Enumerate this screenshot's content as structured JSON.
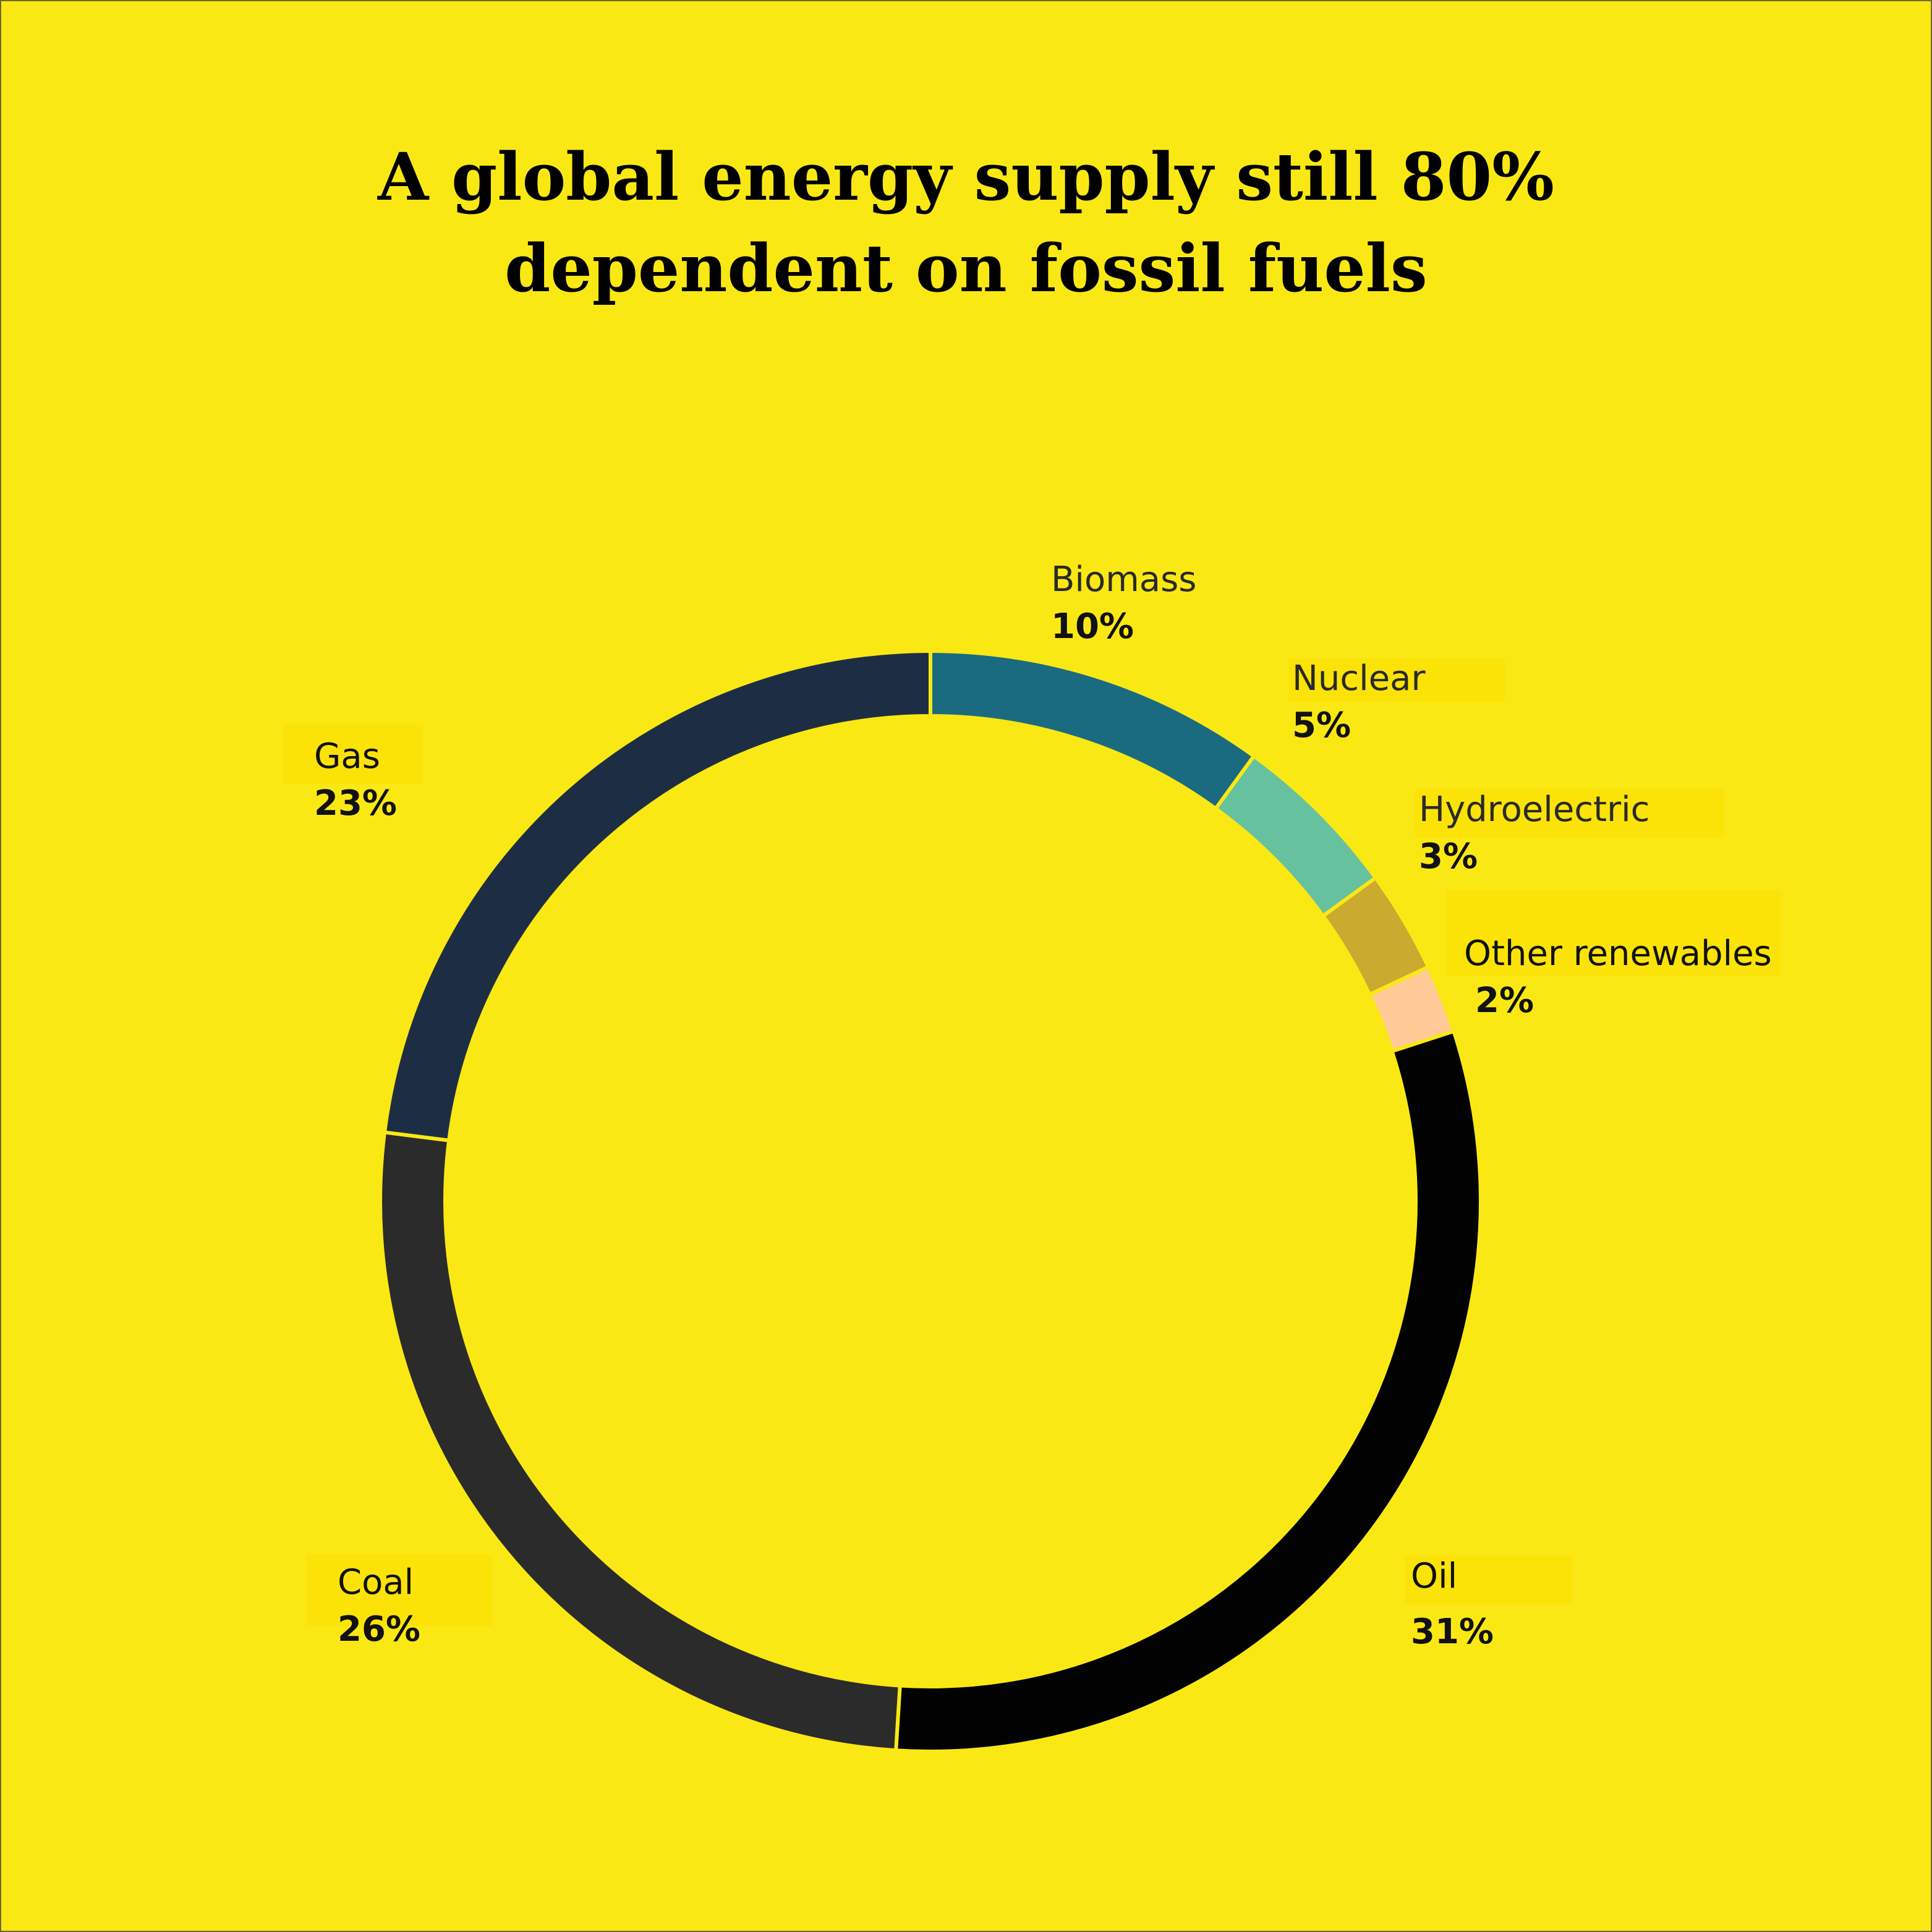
{
  "title": "A global energy supply still 80%\ndependent on fossil fuels",
  "colors": {
    "background": "#fae814",
    "separator": "#fae814"
  },
  "chart_data": {
    "type": "pie",
    "style": "donut",
    "title": "A global energy supply still 80% dependent on fossil fuels",
    "start": "12 o'clock, clockwise",
    "slices": [
      {
        "label": "Biomass",
        "value": 10,
        "display": "10%",
        "color": "#1a6b80"
      },
      {
        "label": "Nuclear",
        "value": 5,
        "display": "5%",
        "color": "#66c19e"
      },
      {
        "label": "Hydroelectric",
        "value": 3,
        "display": "3%",
        "color": "#cbaa30"
      },
      {
        "label": "Other renewables",
        "value": 2,
        "display": "2%",
        "color": "#ffca96"
      },
      {
        "label": "Oil",
        "value": 31,
        "display": "31%",
        "color": "#020202"
      },
      {
        "label": "Coal",
        "value": 26,
        "display": "26%",
        "color": "#2b2b2b"
      },
      {
        "label": "Gas",
        "value": 23,
        "display": "23%",
        "color": "#1d2e44"
      }
    ]
  }
}
